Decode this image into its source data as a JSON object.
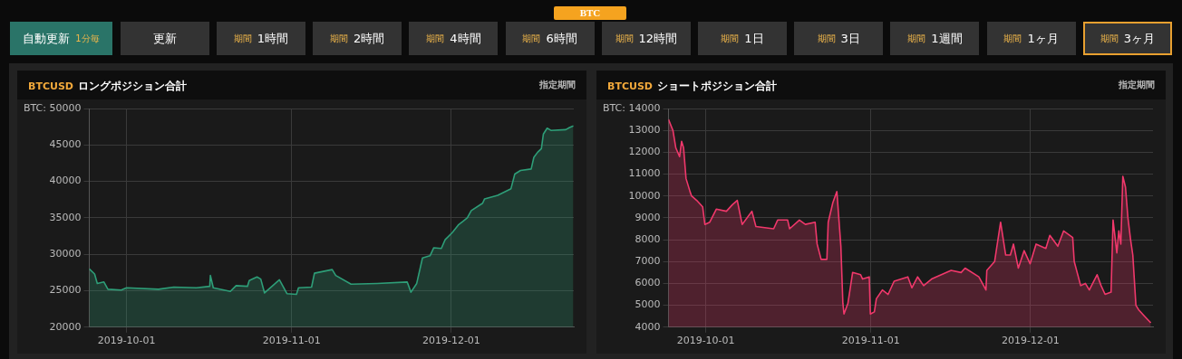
{
  "chart_data": [
    {
      "type": "other",
      "annotations": [
        "BTC",
        "自動更新 1分毎",
        "更新",
        "期間 1時間",
        "期間 2時間",
        "期間 4時間",
        "期間 6時間",
        "期間 12時間",
        "期間 1日",
        "期間 3日",
        "期間 1週間",
        "期間 1ヶ月",
        "期間 3ヶ月"
      ]
    },
    {
      "type": "area",
      "title": "BTCUSD ロングポジション合計",
      "annotations": [
        "指定期間"
      ],
      "grid": true,
      "xlim": [
        "2019-09-24",
        "2019-12-24"
      ],
      "xticks": [
        "2019-10-01",
        "2019-11-01",
        "2019-12-01"
      ],
      "ylim": [
        20000,
        50000
      ],
      "yticks": [
        20000,
        25000,
        30000,
        35000,
        40000,
        45000,
        {
          "value": 50000,
          "label": "BTC: 50000"
        }
      ],
      "series": [
        {
          "color": "#2e9e78",
          "x": [
            "2019-09-24",
            "2019-09-25",
            "2019-09-25T12:00",
            "2019-09-26T18:00",
            "2019-09-27T12:00",
            "2019-09-30",
            "2019-10-01",
            "2019-10-07",
            "2019-10-09T21:00",
            "2019-10-14T03:00",
            "2019-10-16T15:00",
            "2019-10-16T18:00",
            "2019-10-17T07:00",
            "2019-10-20T12:00",
            "2019-10-21T14:00",
            "2019-10-23T17:00",
            "2019-10-24T01:00",
            "2019-10-25T12:00",
            "2019-10-26T05:00",
            "2019-10-26T22:00",
            "2019-10-29T17:00",
            "2019-10-31T03:00",
            "2019-11-01T22:00",
            "2019-11-02T07:00",
            "2019-11-04T18:00",
            "2019-11-05T07:00",
            "2019-11-08T15:00",
            "2019-11-09T07:00",
            "2019-11-12T04:00",
            "2019-11-17T02:00",
            "2019-11-22T17:00",
            "2019-11-23T10:00",
            "2019-11-24T12:00",
            "2019-11-25T14:00",
            "2019-11-27",
            "2019-11-27T17:00",
            "2019-11-29T03:00",
            "2019-11-29T20:00",
            "2019-12-01T05:00",
            "2019-12-02T07:00",
            "2019-12-04",
            "2019-12-04T18:00",
            "2019-12-06T21:00",
            "2019-12-07T06:00",
            "2019-12-09T17:00",
            "2019-12-12T05:00",
            "2019-12-12T22:00",
            "2019-12-14",
            "2019-12-16",
            "2019-12-16T12:00",
            "2019-12-17T05:00",
            "2019-12-17T22:00",
            "2019-12-18T07:00",
            "2019-12-19",
            "2019-12-19T17:00",
            "2019-12-22T12:00",
            "2019-12-23T05:00",
            "2019-12-23T22:00"
          ],
          "values": [
            28000,
            27300,
            26000,
            26200,
            25200,
            25100,
            25400,
            25200,
            25500,
            25400,
            25600,
            27100,
            25400,
            24900,
            25700,
            25600,
            26400,
            26900,
            26600,
            24700,
            26500,
            24600,
            24500,
            25400,
            25500,
            27400,
            27900,
            27100,
            25900,
            26000,
            26200,
            24800,
            26000,
            29500,
            29800,
            30900,
            30800,
            32000,
            33000,
            34000,
            35000,
            36000,
            37000,
            37600,
            38100,
            39000,
            41000,
            41500,
            41700,
            43300,
            44000,
            44500,
            46500,
            47300,
            47000,
            47100,
            47400,
            47600
          ]
        }
      ]
    },
    {
      "type": "area",
      "title": "BTCUSD ショートポジション合計",
      "annotations": [
        "指定期間"
      ],
      "grid": true,
      "xlim": [
        "2019-09-24",
        "2019-12-24"
      ],
      "xticks": [
        "2019-10-01",
        "2019-11-01",
        "2019-12-01"
      ],
      "ylim": [
        4000,
        14000
      ],
      "yticks": [
        4000,
        5000,
        6000,
        7000,
        8000,
        9000,
        10000,
        11000,
        12000,
        13000,
        {
          "value": 14000,
          "label": "BTC: 14000"
        }
      ],
      "series": [
        {
          "color": "#f0386b",
          "x": [
            "2019-09-24",
            "2019-09-24T20:00",
            "2019-09-25T09:00",
            "2019-09-26T02:00",
            "2019-09-26T11:00",
            "2019-09-26T20:00",
            "2019-09-27T07:00",
            "2019-09-28T01:00",
            "2019-09-28T08:00",
            "2019-09-29T07:00",
            "2019-09-30T10:00",
            "2019-09-30T20:00",
            "2019-10-01T18:00",
            "2019-10-03",
            "2019-10-04T21:00",
            "2019-10-06",
            "2019-10-06T22:00",
            "2019-10-07T20:00",
            "2019-10-09T16:00",
            "2019-10-10T10:00",
            "2019-10-13T18:00",
            "2019-10-14T12:00",
            "2019-10-16T09:00",
            "2019-10-16T18:00",
            "2019-10-18T14:00",
            "2019-10-19T17:00",
            "2019-10-21T13:00",
            "2019-10-21T22:00",
            "2019-10-22T16:00",
            "2019-10-23T18:00",
            "2019-10-24",
            "2019-10-24T21:00",
            "2019-10-25T15:00",
            "2019-10-26T09:00",
            "2019-10-26T18:00",
            "2019-10-26T23:00",
            "2019-10-27T17:00",
            "2019-10-28T14:00",
            "2019-10-30T02:00",
            "2019-10-30T11:00",
            "2019-10-31T17:00",
            "2019-10-31T22:00",
            "2019-11-01T16:00",
            "2019-11-02T01:00",
            "2019-11-03T04:00",
            "2019-11-04T06:00",
            "2019-11-05T09:00",
            "2019-11-07T23:00",
            "2019-11-08T17:00",
            "2019-11-09T19:00",
            "2019-11-10T22:00",
            "2019-11-12T10:00",
            "2019-11-16T02:00",
            "2019-11-17T23:00",
            "2019-11-18T17:00",
            "2019-11-21T07:00",
            "2019-11-22T15:00",
            "2019-11-22T19:00",
            "2019-11-24T06:00",
            "2019-11-25T09:00",
            "2019-11-26T08:00",
            "2019-11-27T05:00",
            "2019-11-27T19:00",
            "2019-11-28T17:00",
            "2019-11-29T19:00",
            "2019-11-30T22:00",
            "2019-12-02T01:00",
            "2019-12-03T21:00",
            "2019-12-04T15:00",
            "2019-12-06T03:00",
            "2019-12-07T05:00",
            "2019-12-08T22:00",
            "2019-12-09T05:00",
            "2019-12-10T10:00",
            "2019-12-11T07:00",
            "2019-12-12T01:00",
            "2019-12-13T12:00",
            "2019-12-14T06:00",
            "2019-12-15",
            "2019-12-16T03:00",
            "2019-12-16T12:00",
            "2019-12-17T05:00",
            "2019-12-17T14:00",
            "2019-12-17T23:00",
            "2019-12-18T08:00",
            "2019-12-18T20:00",
            "2019-12-19T07:00",
            "2019-12-19T19:00",
            "2019-12-20T05:00",
            "2019-12-20T19:00",
            "2019-12-21T07:00",
            "2019-12-22T10:00",
            "2019-12-23T14:00"
          ],
          "values": [
            13500,
            13000,
            12200,
            11800,
            12500,
            12200,
            10800,
            10200,
            10000,
            9800,
            9500,
            8700,
            8800,
            9400,
            9300,
            9600,
            9800,
            8700,
            9300,
            8600,
            8500,
            8900,
            8900,
            8500,
            8900,
            8700,
            8800,
            7800,
            7100,
            7100,
            8800,
            9700,
            10200,
            7700,
            5100,
            4600,
            5100,
            6500,
            6400,
            6200,
            6300,
            4600,
            4700,
            5300,
            5700,
            5500,
            6100,
            6300,
            5800,
            6300,
            5900,
            6200,
            6600,
            6500,
            6700,
            6300,
            5700,
            6600,
            7000,
            8800,
            7300,
            7300,
            7800,
            6700,
            7500,
            6900,
            7800,
            7600,
            8200,
            7700,
            8400,
            8100,
            7000,
            5900,
            6000,
            5700,
            6400,
            5900,
            5500,
            5600,
            8900,
            7400,
            8400,
            7800,
            10900,
            10400,
            9000,
            8000,
            7300,
            5000,
            4800,
            4500,
            4200
          ]
        }
      ]
    }
  ]
}
